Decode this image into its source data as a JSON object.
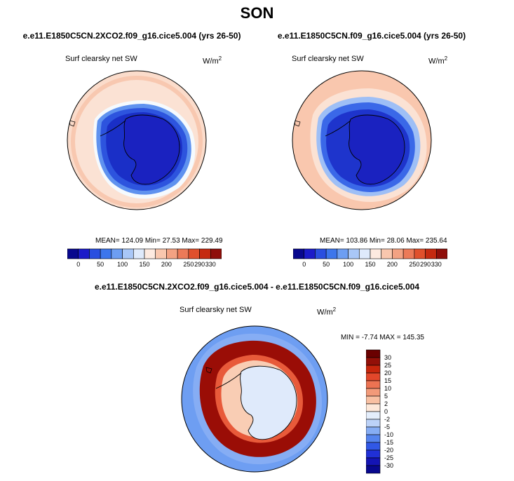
{
  "figure": {
    "season": "SON"
  },
  "palettes": {
    "absolute": [
      "#08088e",
      "#1b1bc9",
      "#2a4fe0",
      "#3d76ec",
      "#6d9ef2",
      "#a9c7f7",
      "#dfeafb",
      "#fdeae0",
      "#f9c7ae",
      "#f3a283",
      "#ec7a58",
      "#e0502c",
      "#c52a10",
      "#8f0f0a"
    ],
    "difference": [
      "#08088e",
      "#1414b4",
      "#2030d6",
      "#3158e6",
      "#5584ee",
      "#86adf4",
      "#bcd2f8",
      "#e4eefc",
      "#fde8d9",
      "#f8c0a2",
      "#f29a79",
      "#ec7352",
      "#e2472a",
      "#c7260c",
      "#931008",
      "#6a0000"
    ]
  },
  "chart_data": [
    {
      "type": "heatmap",
      "projection": "south-polar-stereographic",
      "title": "e.e11.E1850C5CN.2XCO2.f09_g16.cice5.004 (yrs 26-50)",
      "variable": "Surf clearsky net SW",
      "units": "W/m",
      "units_exp": "2",
      "stats_text": "MEAN= 124.09  Min=  27.53  Max= 229.49",
      "mean": 124.09,
      "min": 27.53,
      "max": 229.49,
      "colorbar_labels": [
        "0",
        "50",
        "100",
        "150",
        "200",
        "250",
        "290",
        "330"
      ]
    },
    {
      "type": "heatmap",
      "projection": "south-polar-stereographic",
      "title": "e.e11.E1850C5CN.f09_g16.cice5.004 (yrs 26-50)",
      "variable": "Surf clearsky net SW",
      "units": "W/m",
      "units_exp": "2",
      "stats_text": "MEAN= 103.86  Min=  28.06  Max= 235.64",
      "mean": 103.86,
      "min": 28.06,
      "max": 235.64,
      "colorbar_labels": [
        "0",
        "50",
        "100",
        "150",
        "200",
        "250",
        "290",
        "330"
      ]
    },
    {
      "type": "heatmap",
      "projection": "south-polar-stereographic",
      "title": "e.e11.E1850C5CN.2XCO2.f09_g16.cice5.004 - e.e11.E1850C5CN.f09_g16.cice5.004",
      "variable": "Surf clearsky net SW",
      "units": "W/m",
      "units_exp": "2",
      "stats_text": "MIN =  -7.74 MAX = 145.35",
      "min": -7.74,
      "max": 145.35,
      "colorbar_labels": [
        "30",
        "25",
        "20",
        "15",
        "10",
        "5",
        "2",
        "0",
        "-2",
        "-5",
        "-10",
        "-15",
        "-20",
        "-25",
        "-30"
      ]
    }
  ]
}
